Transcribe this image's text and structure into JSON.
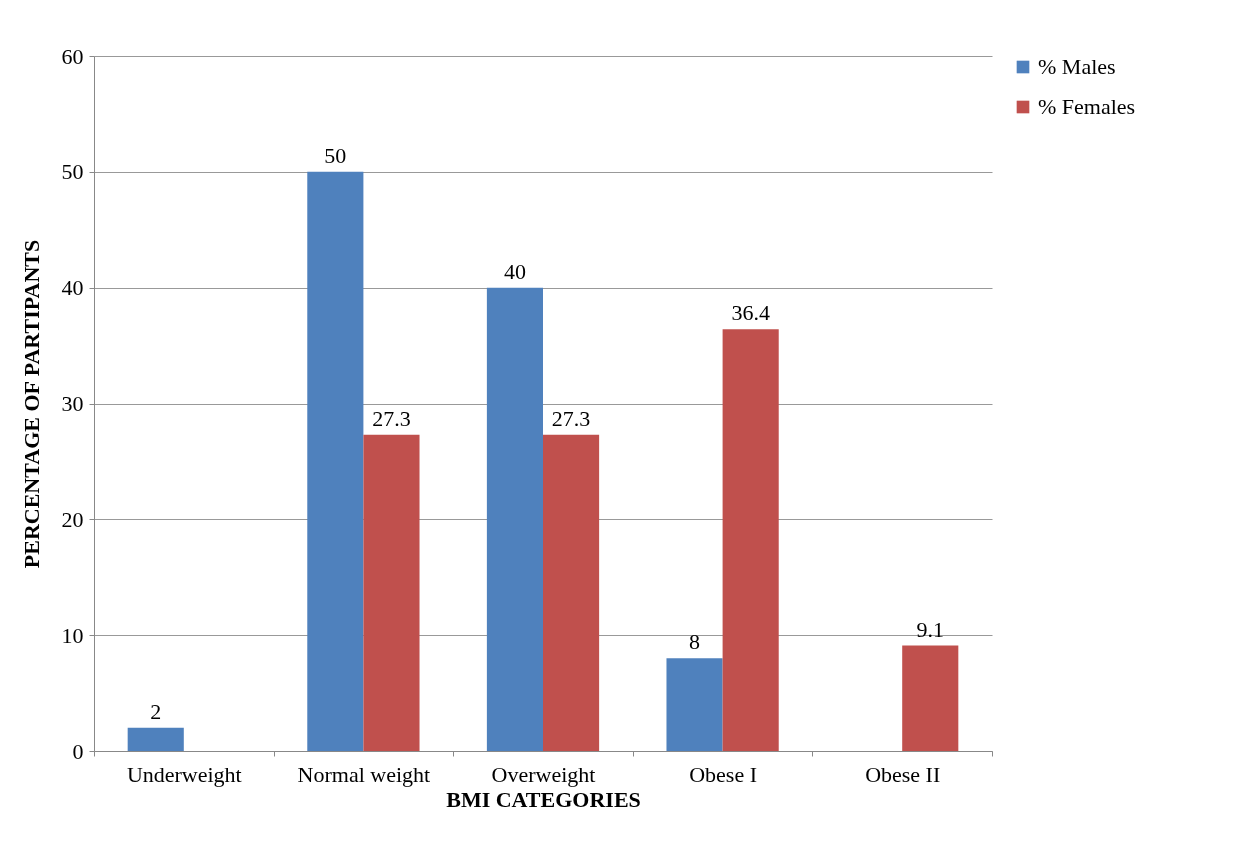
{
  "chart_data": {
    "type": "bar",
    "xlabel": "BMI CATEGORIES",
    "ylabel": "PERCENTAGE OF PARTIPANTS",
    "categories": [
      "Underweight",
      "Normal weight",
      "Overweight",
      "Obese I",
      "Obese II"
    ],
    "series": [
      {
        "name": "% Males",
        "color": "#4f81bd",
        "values": [
          2,
          50,
          40,
          8,
          null
        ]
      },
      {
        "name": "% Females",
        "color": "#c0504d",
        "values": [
          null,
          27.3,
          27.3,
          36.4,
          9.1
        ]
      }
    ],
    "ylim": [
      0,
      60
    ],
    "yticks": [
      0,
      10,
      20,
      30,
      40,
      50,
      60
    ],
    "grid": "y",
    "legend": "right",
    "data_labels": true
  }
}
